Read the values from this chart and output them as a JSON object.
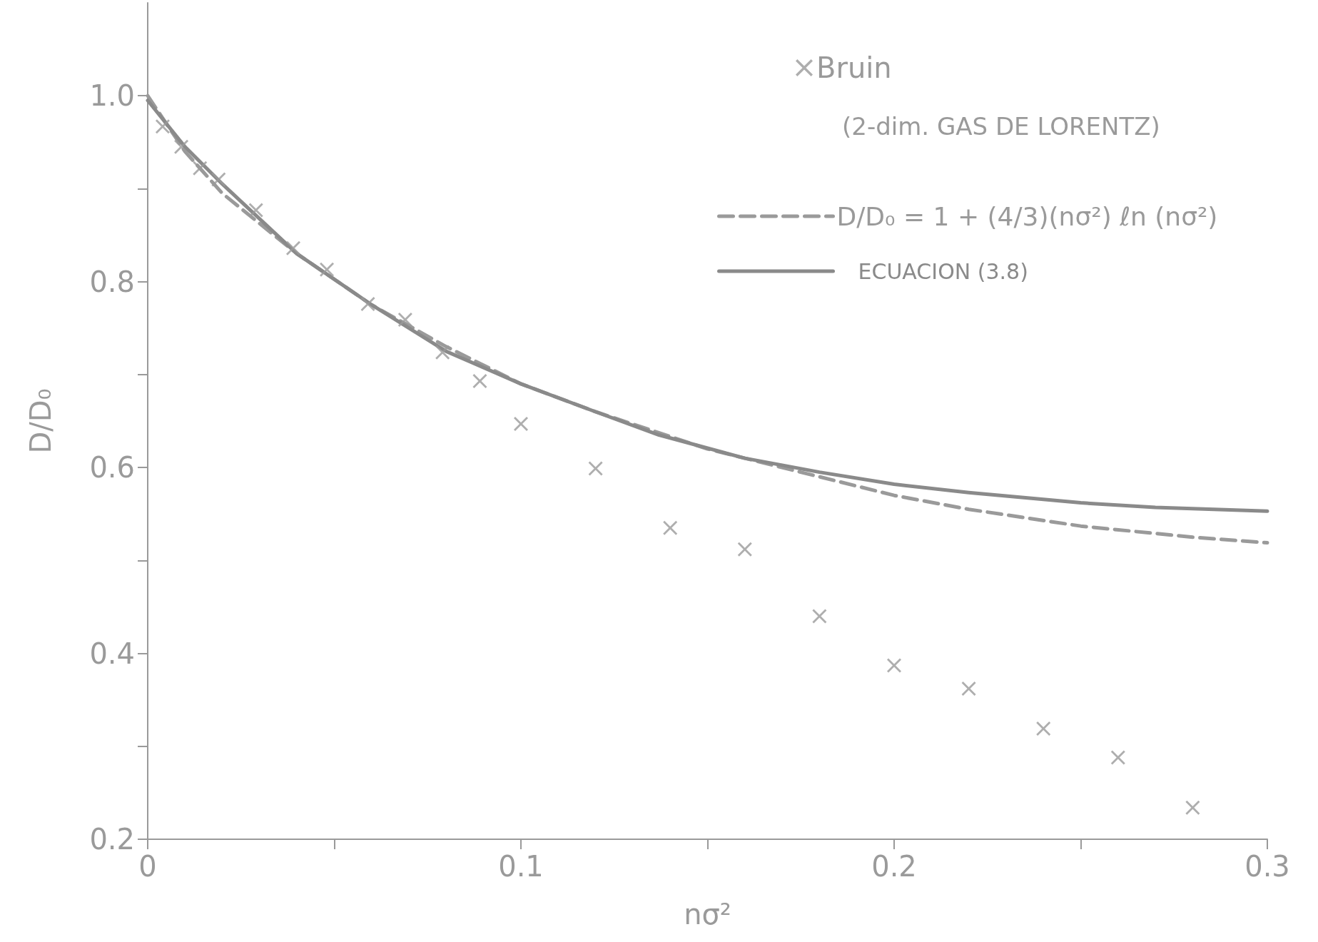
{
  "chart_data": {
    "type": "scatter",
    "xlabel": "nσ²",
    "ylabel": "D/D₀",
    "xlim": [
      0,
      0.3
    ],
    "xticks": [
      0,
      {
        "value": 0.05,
        "label": null
      },
      0.1,
      {
        "value": 0.15,
        "label": null
      },
      0.2,
      {
        "value": 0.25,
        "label": null
      },
      0.3
    ],
    "ylim": [
      0.2,
      1.1
    ],
    "yticks": [
      0.2,
      {
        "value": 0.3,
        "label": null
      },
      0.4,
      {
        "value": 0.5,
        "label": null
      },
      0.6,
      {
        "value": 0.7,
        "label": null
      },
      0.8,
      {
        "value": 0.9,
        "label": null
      },
      {
        "value": 1,
        "label": "1.0"
      }
    ],
    "grid": false,
    "legend": "top right",
    "annotations": [
      "(2-dim. GAS DE LORENTZ)"
    ],
    "series": [
      {
        "name": "Bruin",
        "marker": "cross",
        "color": "#9a9a9a",
        "x": [
          0.004,
          0.009,
          0.014,
          0.019,
          0.029,
          0.039,
          0.048,
          0.059,
          0.069,
          0.079,
          0.089,
          0.1,
          0.12,
          0.14,
          0.16,
          0.18,
          0.2,
          0.22,
          0.24,
          0.26,
          0.28
        ],
        "values": [
          0.967,
          0.945,
          0.922,
          0.91,
          0.877,
          0.836,
          0.813,
          0.776,
          0.759,
          0.724,
          0.693,
          0.647,
          0.599,
          0.535,
          0.512,
          0.44,
          0.387,
          0.362,
          0.319,
          0.288,
          0.234
        ]
      },
      {
        "name": "D/D₀ = 1 + (4/3)(nσ²) ℓn (nσ²)",
        "type": "line",
        "line_style": "dashed",
        "marker": "none",
        "color": "#9a9a9a",
        "x": [
          0,
          0.01,
          0.02,
          0.04,
          0.06,
          0.08,
          0.1,
          0.12,
          0.15,
          0.18,
          0.2,
          0.22,
          0.25,
          0.28,
          0.3
        ],
        "values": [
          1.0,
          0.94,
          0.895,
          0.83,
          0.775,
          0.73,
          0.69,
          0.66,
          0.62,
          0.59,
          0.57,
          0.555,
          0.537,
          0.525,
          0.519
        ]
      },
      {
        "name": "ECUACION (3.8)",
        "type": "line",
        "line_style": "solid",
        "marker": "none",
        "color": "#8a8a8a",
        "x": [
          0,
          0.01,
          0.02,
          0.04,
          0.06,
          0.08,
          0.1,
          0.12,
          0.137,
          0.16,
          0.18,
          0.2,
          0.22,
          0.25,
          0.27,
          0.3
        ],
        "values": [
          0.995,
          0.945,
          0.905,
          0.83,
          0.775,
          0.725,
          0.69,
          0.66,
          0.635,
          0.61,
          0.595,
          0.582,
          0.573,
          0.562,
          0.557,
          0.553
        ]
      }
    ]
  }
}
